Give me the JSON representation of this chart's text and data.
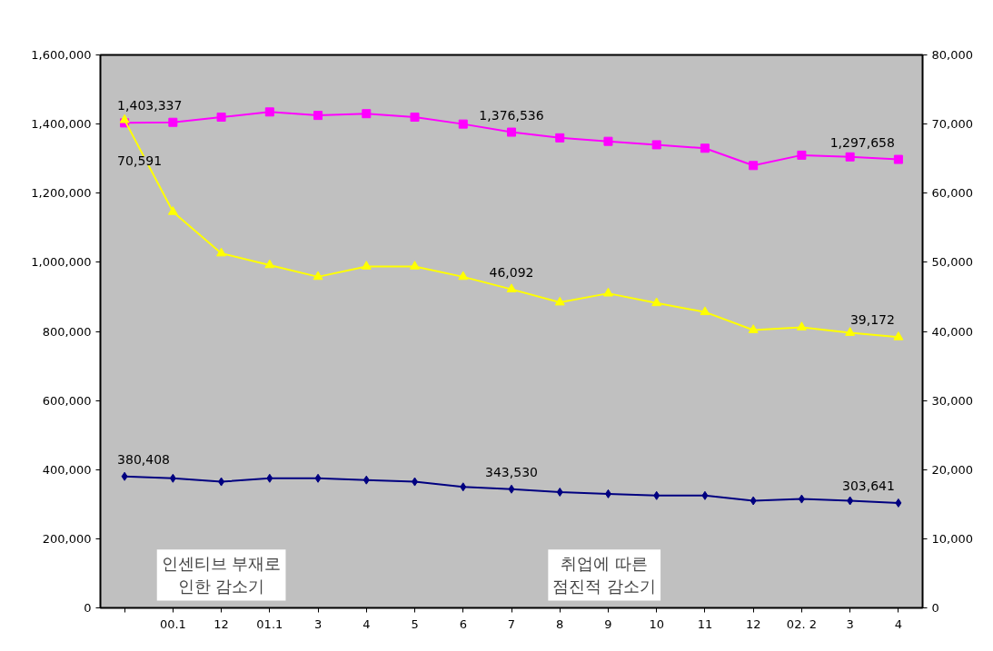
{
  "chart_data": {
    "type": "line",
    "categories": [
      null,
      "00.1",
      "12",
      "01.1",
      "3",
      "4",
      "5",
      "6",
      "7",
      "8",
      "9",
      "10",
      "11",
      "12",
      "02. 2",
      "3",
      "4"
    ],
    "series": [
      {
        "color": "#ff00ff",
        "marker": "square",
        "values": [
          1403337,
          1405000,
          1420000,
          1435000,
          1425000,
          1430000,
          1420000,
          1400000,
          1376536,
          1360000,
          1350000,
          1340000,
          1330000,
          1280000,
          1310000,
          1305000,
          1297658
        ],
        "value_labels": [
          "1,403,337",
          null,
          null,
          null,
          null,
          null,
          null,
          null,
          "1,376,536",
          null,
          null,
          null,
          null,
          null,
          null,
          null,
          "1,297,658"
        ]
      },
      {
        "color": "#000080",
        "marker": "diamond",
        "values": [
          380408,
          375000,
          365000,
          375000,
          375000,
          370000,
          365000,
          350000,
          343530,
          335000,
          330000,
          325000,
          325000,
          310000,
          315000,
          310000,
          303641
        ],
        "value_labels": [
          "380,408",
          null,
          null,
          null,
          null,
          null,
          null,
          null,
          "343,530",
          null,
          null,
          null,
          null,
          null,
          null,
          null,
          "303,641"
        ]
      },
      {
        "color": "#ffff00",
        "marker": "triangle",
        "axis": "y2",
        "values": [
          70591,
          57300,
          51300,
          49600,
          47900,
          49400,
          49400,
          47900,
          46092,
          44200,
          45500,
          44100,
          42800,
          40200,
          40600,
          39800,
          39172
        ],
        "value_labels": [
          "70,591",
          null,
          null,
          null,
          null,
          null,
          null,
          null,
          "46,092",
          null,
          null,
          null,
          null,
          null,
          null,
          null,
          "39,172"
        ]
      }
    ],
    "ylim": [
      0,
      1600000
    ],
    "yticks": [
      {
        "value": 0,
        "label": "0"
      },
      {
        "value": 200000,
        "label": "200,000"
      },
      {
        "value": 400000,
        "label": "400,000"
      },
      {
        "value": 600000,
        "label": "600,000"
      },
      {
        "value": 800000,
        "label": "800,000"
      },
      {
        "value": 1000000,
        "label": "1,000,000"
      },
      {
        "value": 1200000,
        "label": "1,200,000"
      },
      {
        "value": 1400000,
        "label": "1,400,000"
      },
      {
        "value": 1600000,
        "label": "1,600,000"
      }
    ],
    "y2lim": [
      0,
      80000
    ],
    "y2ticks": [
      {
        "value": 0,
        "label": "0"
      },
      {
        "value": 10000,
        "label": "10,000"
      },
      {
        "value": 20000,
        "label": "20,000"
      },
      {
        "value": 30000,
        "label": "30,000"
      },
      {
        "value": 40000,
        "label": "40,000"
      },
      {
        "value": 50000,
        "label": "50,000"
      },
      {
        "value": 60000,
        "label": "60,000"
      },
      {
        "value": 70000,
        "label": "70,000"
      },
      {
        "value": 80000,
        "label": "80,000"
      }
    ],
    "annotations": [
      "인센티브 부재로\n인한 감소기",
      "취업에 따른\n점진적 감소기"
    ],
    "grid": false,
    "line_style": "solid"
  }
}
